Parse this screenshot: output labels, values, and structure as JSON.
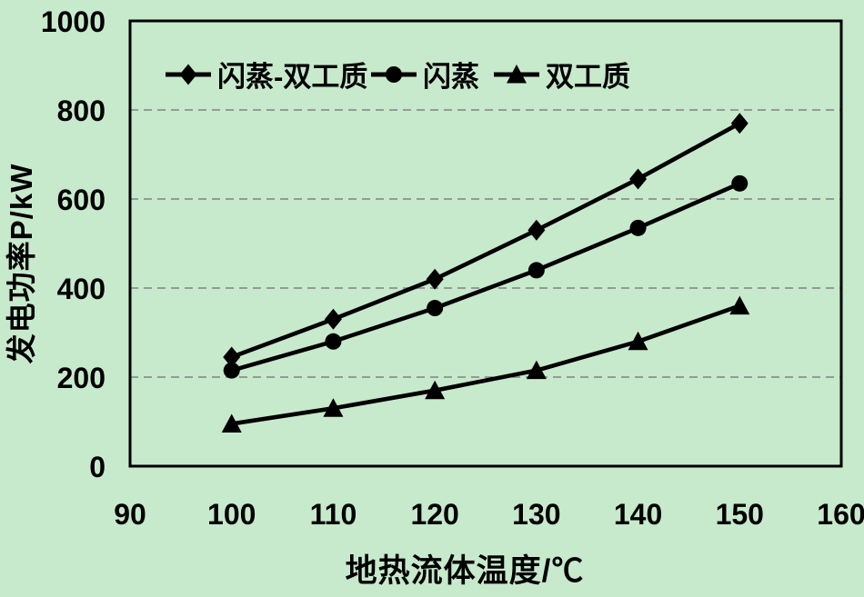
{
  "colors": {
    "background": "#c7e9cc",
    "line": "#000000",
    "grid": "#8f8f8f",
    "text": "#000000"
  },
  "chart_data": {
    "type": "line",
    "title": "",
    "xlabel": "地热流体温度/℃",
    "ylabel": "发电功率P/kW",
    "xlim": [
      90,
      160
    ],
    "ylim": [
      0,
      1000
    ],
    "x_ticks": [
      90,
      100,
      110,
      120,
      130,
      140,
      150,
      160
    ],
    "y_ticks": [
      0,
      200,
      400,
      600,
      800,
      1000
    ],
    "grid": "horizontal gray dashed gridlines",
    "legend_position": "top inside, horizontal row",
    "x": [
      100,
      110,
      120,
      130,
      140,
      150
    ],
    "series": [
      {
        "name": "闪蒸-双工质",
        "marker": "diamond",
        "color": "#000000",
        "values": [
          245,
          330,
          420,
          530,
          645,
          770
        ]
      },
      {
        "name": "闪蒸",
        "marker": "circle",
        "color": "#000000",
        "values": [
          215,
          280,
          355,
          440,
          535,
          635
        ]
      },
      {
        "name": "双工质",
        "marker": "triangle",
        "color": "#000000",
        "values": [
          95,
          130,
          170,
          215,
          280,
          360
        ]
      }
    ]
  }
}
